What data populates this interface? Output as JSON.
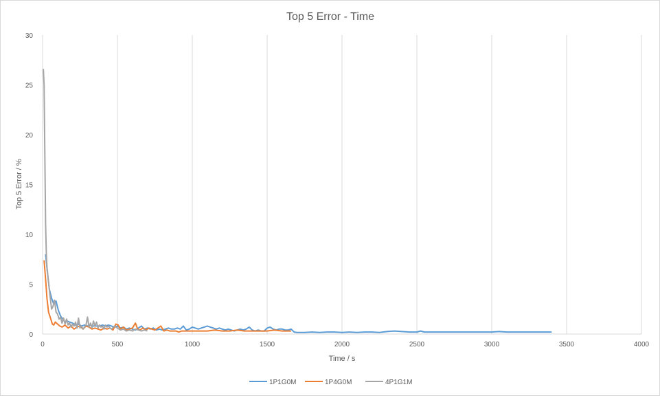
{
  "chart_data": {
    "type": "line",
    "title": "Top 5 Error - Time",
    "xlabel": "Time / s",
    "ylabel": "Top 5 Error / %",
    "xlim": [
      0,
      4000
    ],
    "ylim": [
      0,
      30
    ],
    "x_ticks": [
      0,
      500,
      1000,
      1500,
      2000,
      2500,
      3000,
      3500,
      4000
    ],
    "y_ticks": [
      0,
      5,
      10,
      15,
      20,
      25,
      30
    ],
    "grid": "vertical",
    "legend_position": "bottom",
    "series": [
      {
        "name": "1P1G0M",
        "color": "#5b9bd5",
        "points": [
          [
            20,
            8.0
          ],
          [
            30,
            6.6
          ],
          [
            45,
            4.5
          ],
          [
            60,
            3.6
          ],
          [
            75,
            3.0
          ],
          [
            90,
            3.3
          ],
          [
            105,
            2.4
          ],
          [
            120,
            1.8
          ],
          [
            135,
            1.5
          ],
          [
            150,
            1.2
          ],
          [
            165,
            1.3
          ],
          [
            180,
            1.2
          ],
          [
            200,
            1.1
          ],
          [
            220,
            0.9
          ],
          [
            240,
            1.0
          ],
          [
            260,
            0.8
          ],
          [
            280,
            0.9
          ],
          [
            300,
            0.8
          ],
          [
            320,
            0.9
          ],
          [
            340,
            0.8
          ],
          [
            360,
            0.8
          ],
          [
            380,
            0.8
          ],
          [
            400,
            0.9
          ],
          [
            420,
            0.8
          ],
          [
            440,
            0.9
          ],
          [
            460,
            0.8
          ],
          [
            480,
            0.7
          ],
          [
            500,
            0.8
          ],
          [
            520,
            0.6
          ],
          [
            540,
            0.7
          ],
          [
            560,
            0.5
          ],
          [
            580,
            0.6
          ],
          [
            600,
            0.5
          ],
          [
            620,
            0.4
          ],
          [
            640,
            0.6
          ],
          [
            660,
            0.8
          ],
          [
            680,
            0.5
          ],
          [
            700,
            0.6
          ],
          [
            720,
            0.5
          ],
          [
            740,
            0.6
          ],
          [
            760,
            0.4
          ],
          [
            780,
            0.5
          ],
          [
            800,
            0.4
          ],
          [
            820,
            0.5
          ],
          [
            840,
            0.6
          ],
          [
            860,
            0.5
          ],
          [
            880,
            0.5
          ],
          [
            900,
            0.6
          ],
          [
            920,
            0.5
          ],
          [
            940,
            0.8
          ],
          [
            960,
            0.4
          ],
          [
            980,
            0.5
          ],
          [
            1000,
            0.7
          ],
          [
            1020,
            0.6
          ],
          [
            1040,
            0.5
          ],
          [
            1060,
            0.6
          ],
          [
            1080,
            0.7
          ],
          [
            1100,
            0.8
          ],
          [
            1120,
            0.7
          ],
          [
            1140,
            0.6
          ],
          [
            1160,
            0.5
          ],
          [
            1180,
            0.6
          ],
          [
            1200,
            0.5
          ],
          [
            1220,
            0.4
          ],
          [
            1240,
            0.5
          ],
          [
            1260,
            0.4
          ],
          [
            1280,
            0.3
          ],
          [
            1300,
            0.4
          ],
          [
            1320,
            0.5
          ],
          [
            1340,
            0.4
          ],
          [
            1360,
            0.5
          ],
          [
            1380,
            0.7
          ],
          [
            1400,
            0.4
          ],
          [
            1420,
            0.3
          ],
          [
            1440,
            0.4
          ],
          [
            1460,
            0.3
          ],
          [
            1480,
            0.3
          ],
          [
            1500,
            0.6
          ],
          [
            1520,
            0.7
          ],
          [
            1540,
            0.5
          ],
          [
            1560,
            0.4
          ],
          [
            1580,
            0.5
          ],
          [
            1600,
            0.5
          ],
          [
            1620,
            0.4
          ],
          [
            1640,
            0.4
          ],
          [
            1660,
            0.5
          ],
          [
            1680,
            0.2
          ],
          [
            1700,
            0.15
          ],
          [
            1750,
            0.15
          ],
          [
            1800,
            0.2
          ],
          [
            1850,
            0.15
          ],
          [
            1900,
            0.2
          ],
          [
            1950,
            0.2
          ],
          [
            2000,
            0.15
          ],
          [
            2050,
            0.2
          ],
          [
            2100,
            0.15
          ],
          [
            2150,
            0.2
          ],
          [
            2200,
            0.2
          ],
          [
            2250,
            0.15
          ],
          [
            2300,
            0.25
          ],
          [
            2350,
            0.3
          ],
          [
            2400,
            0.25
          ],
          [
            2450,
            0.2
          ],
          [
            2500,
            0.2
          ],
          [
            2525,
            0.3
          ],
          [
            2550,
            0.2
          ],
          [
            2600,
            0.2
          ],
          [
            2650,
            0.2
          ],
          [
            2700,
            0.2
          ],
          [
            2750,
            0.2
          ],
          [
            2800,
            0.2
          ],
          [
            2850,
            0.2
          ],
          [
            2900,
            0.2
          ],
          [
            2950,
            0.2
          ],
          [
            3000,
            0.2
          ],
          [
            3050,
            0.25
          ],
          [
            3100,
            0.2
          ],
          [
            3150,
            0.2
          ],
          [
            3200,
            0.2
          ],
          [
            3250,
            0.2
          ],
          [
            3300,
            0.2
          ],
          [
            3350,
            0.2
          ],
          [
            3400,
            0.2
          ]
        ]
      },
      {
        "name": "1P4G0M",
        "color": "#ed7d31",
        "points": [
          [
            10,
            7.4
          ],
          [
            20,
            5.5
          ],
          [
            30,
            3.5
          ],
          [
            40,
            2.2
          ],
          [
            55,
            1.5
          ],
          [
            65,
            1.0
          ],
          [
            75,
            0.9
          ],
          [
            85,
            1.2
          ],
          [
            100,
            1.0
          ],
          [
            115,
            0.8
          ],
          [
            130,
            0.7
          ],
          [
            150,
            0.9
          ],
          [
            170,
            0.6
          ],
          [
            190,
            0.8
          ],
          [
            210,
            0.5
          ],
          [
            230,
            0.7
          ],
          [
            250,
            0.8
          ],
          [
            270,
            0.5
          ],
          [
            290,
            0.8
          ],
          [
            310,
            0.7
          ],
          [
            330,
            0.5
          ],
          [
            350,
            0.6
          ],
          [
            370,
            0.5
          ],
          [
            390,
            0.4
          ],
          [
            410,
            0.6
          ],
          [
            430,
            0.5
          ],
          [
            450,
            0.6
          ],
          [
            470,
            0.4
          ],
          [
            490,
            1.0
          ],
          [
            505,
            0.9
          ],
          [
            520,
            0.5
          ],
          [
            540,
            0.7
          ],
          [
            560,
            0.4
          ],
          [
            580,
            0.5
          ],
          [
            600,
            0.6
          ],
          [
            620,
            1.1
          ],
          [
            635,
            0.5
          ],
          [
            650,
            0.4
          ],
          [
            670,
            0.6
          ],
          [
            690,
            0.4
          ],
          [
            710,
            0.6
          ],
          [
            730,
            0.5
          ],
          [
            750,
            0.4
          ],
          [
            770,
            0.6
          ],
          [
            790,
            0.8
          ],
          [
            810,
            0.3
          ],
          [
            830,
            0.4
          ],
          [
            850,
            0.3
          ],
          [
            870,
            0.3
          ],
          [
            890,
            0.3
          ],
          [
            910,
            0.2
          ],
          [
            930,
            0.3
          ],
          [
            950,
            0.3
          ],
          [
            970,
            0.3
          ],
          [
            1000,
            0.3
          ],
          [
            1050,
            0.3
          ],
          [
            1100,
            0.3
          ],
          [
            1150,
            0.4
          ],
          [
            1200,
            0.3
          ],
          [
            1250,
            0.3
          ],
          [
            1300,
            0.4
          ],
          [
            1350,
            0.3
          ],
          [
            1400,
            0.3
          ],
          [
            1450,
            0.3
          ],
          [
            1500,
            0.3
          ],
          [
            1550,
            0.4
          ],
          [
            1600,
            0.3
          ],
          [
            1660,
            0.3
          ]
        ]
      },
      {
        "name": "4P1G1M",
        "color": "#a5a5a5",
        "points": [
          [
            5,
            26.6
          ],
          [
            10,
            25.0
          ],
          [
            15,
            18.0
          ],
          [
            20,
            11.0
          ],
          [
            25,
            8.0
          ],
          [
            30,
            6.5
          ],
          [
            40,
            5.2
          ],
          [
            50,
            3.8
          ],
          [
            60,
            2.5
          ],
          [
            70,
            2.8
          ],
          [
            80,
            3.4
          ],
          [
            90,
            2.2
          ],
          [
            100,
            2.0
          ],
          [
            110,
            1.5
          ],
          [
            120,
            1.7
          ],
          [
            130,
            1.1
          ],
          [
            140,
            1.6
          ],
          [
            150,
            1.0
          ],
          [
            160,
            1.5
          ],
          [
            170,
            0.9
          ],
          [
            180,
            1.1
          ],
          [
            190,
            0.7
          ],
          [
            200,
            1.0
          ],
          [
            210,
            0.8
          ],
          [
            220,
            1.2
          ],
          [
            230,
            0.6
          ],
          [
            240,
            1.6
          ],
          [
            250,
            0.6
          ],
          [
            260,
            0.8
          ],
          [
            270,
            0.5
          ],
          [
            280,
            0.7
          ],
          [
            290,
            0.9
          ],
          [
            300,
            1.7
          ],
          [
            310,
            0.7
          ],
          [
            320,
            1.1
          ],
          [
            330,
            0.6
          ],
          [
            340,
            1.3
          ],
          [
            350,
            0.8
          ],
          [
            360,
            1.2
          ],
          [
            370,
            0.6
          ],
          [
            380,
            0.9
          ],
          [
            390,
            0.7
          ],
          [
            400,
            0.8
          ],
          [
            410,
            0.5
          ],
          [
            420,
            0.9
          ],
          [
            430,
            0.7
          ],
          [
            440,
            0.8
          ],
          [
            450,
            0.6
          ],
          [
            460,
            0.5
          ],
          [
            480,
            0.8
          ],
          [
            500,
            0.6
          ],
          [
            520,
            0.4
          ],
          [
            540,
            0.5
          ],
          [
            560,
            0.3
          ],
          [
            580,
            0.4
          ],
          [
            600,
            0.3
          ],
          [
            620,
            0.5
          ],
          [
            640,
            0.4
          ],
          [
            660,
            0.3
          ],
          [
            680,
            0.4
          ],
          [
            700,
            0.3
          ]
        ]
      }
    ]
  }
}
